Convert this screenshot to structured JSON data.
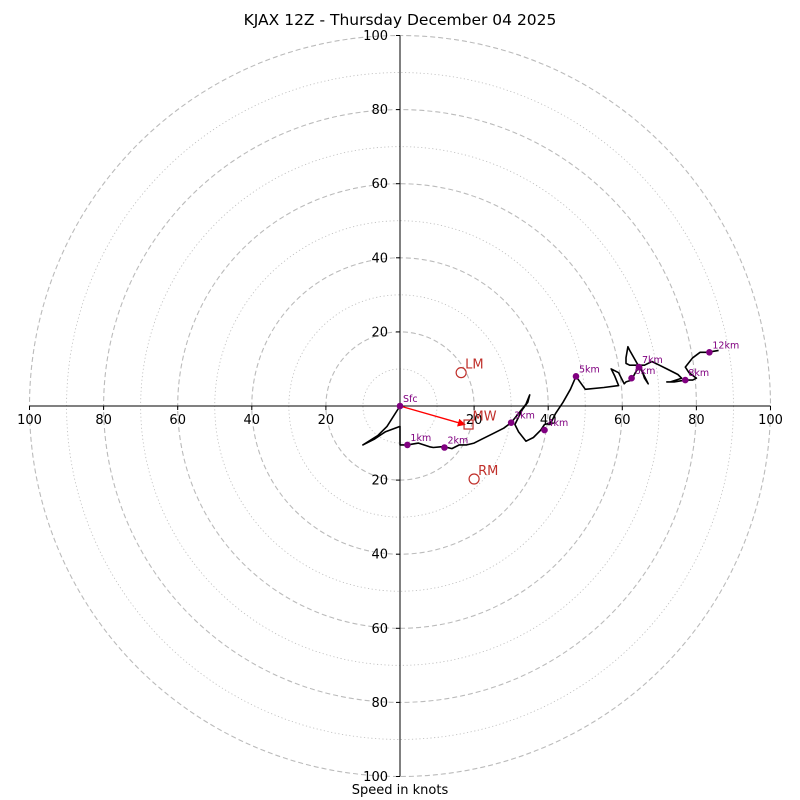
{
  "chart_data": {
    "type": "hodograph",
    "title": "KJAX 12Z - Thursday December 04 2025",
    "xlabel": "Speed in knots",
    "range": [
      -100,
      100
    ],
    "x_ticks": [
      "100",
      "80",
      "60",
      "40",
      "20",
      "20",
      "40",
      "60",
      "80",
      "100"
    ],
    "x_tick_values": [
      -100,
      -80,
      -60,
      -40,
      -20,
      20,
      40,
      60,
      80,
      100
    ],
    "y_ticks": [
      "100",
      "80",
      "60",
      "40",
      "20",
      "20",
      "40",
      "60",
      "80",
      "100"
    ],
    "y_tick_values": [
      100,
      80,
      60,
      40,
      20,
      -20,
      -40,
      -60,
      -80,
      -100
    ],
    "rings_dashed": [
      20,
      40,
      60,
      80,
      100
    ],
    "rings_dotted": [
      10,
      30,
      50,
      70,
      90
    ],
    "trace": [
      [
        0,
        0
      ],
      [
        -3.5,
        -5.5
      ],
      [
        -6,
        -8
      ],
      [
        -10,
        -10.5
      ],
      [
        -7,
        -9
      ],
      [
        -4,
        -7
      ],
      [
        0,
        -5.5
      ],
      [
        0,
        -9
      ],
      [
        0,
        -10.5
      ],
      [
        2,
        -10.5
      ],
      [
        5,
        -10
      ],
      [
        8,
        -11
      ],
      [
        9,
        -11.2
      ],
      [
        11,
        -11
      ],
      [
        12,
        -11
      ],
      [
        14,
        -11.5
      ],
      [
        16,
        -10.5
      ],
      [
        18,
        -10.5
      ],
      [
        20,
        -10
      ],
      [
        22,
        -9
      ],
      [
        25,
        -7.5
      ],
      [
        28,
        -6
      ],
      [
        30,
        -4.5
      ],
      [
        32,
        -2
      ],
      [
        34,
        0.5
      ],
      [
        35,
        3
      ],
      [
        34.5,
        1
      ],
      [
        33,
        -1
      ],
      [
        31,
        -5
      ],
      [
        32,
        -7
      ],
      [
        34,
        -9.5
      ],
      [
        36,
        -8.5
      ],
      [
        38,
        -6.5
      ],
      [
        39,
        -5
      ],
      [
        41,
        -4.5
      ],
      [
        40,
        -5
      ],
      [
        40.5,
        -5
      ],
      [
        42,
        -2
      ],
      [
        44,
        1
      ],
      [
        46,
        4.5
      ],
      [
        47.5,
        8
      ],
      [
        50,
        4.5
      ],
      [
        55,
        5
      ],
      [
        59,
        5.5
      ],
      [
        58,
        8
      ],
      [
        57,
        10
      ],
      [
        59,
        9
      ],
      [
        60.5,
        6
      ],
      [
        61,
        6.5
      ],
      [
        62.5,
        7
      ],
      [
        63,
        8
      ],
      [
        63.5,
        9
      ],
      [
        64.5,
        10.5
      ],
      [
        65,
        10.5
      ],
      [
        66,
        7.5
      ],
      [
        67,
        6
      ],
      [
        65.5,
        9
      ],
      [
        64,
        11.5
      ],
      [
        62,
        15
      ],
      [
        61.5,
        16
      ],
      [
        61,
        13
      ],
      [
        61,
        11.5
      ],
      [
        62,
        11
      ],
      [
        64,
        11
      ],
      [
        66,
        11
      ],
      [
        68,
        12
      ],
      [
        70,
        11
      ],
      [
        72,
        10
      ],
      [
        75,
        8.5
      ],
      [
        76,
        7.5
      ],
      [
        73,
        6.5
      ],
      [
        72,
        6.5
      ],
      [
        74,
        6.5
      ],
      [
        77,
        7
      ],
      [
        79,
        7
      ],
      [
        80,
        7.5
      ],
      [
        78,
        9
      ],
      [
        77,
        10.5
      ],
      [
        79,
        13
      ],
      [
        81,
        14.5
      ],
      [
        83,
        14.5
      ],
      [
        86,
        15
      ]
    ],
    "height_markers": [
      {
        "label": "Sfc",
        "u": 0,
        "v": 0
      },
      {
        "label": "1km",
        "u": 2,
        "v": -10.5
      },
      {
        "label": "2km",
        "u": 12,
        "v": -11.2
      },
      {
        "label": "3km",
        "u": 30,
        "v": -4.5
      },
      {
        "label": "4km",
        "u": 39,
        "v": -6.5
      },
      {
        "label": "5km",
        "u": 47.5,
        "v": 8
      },
      {
        "label": "6km",
        "u": 62.5,
        "v": 7.5
      },
      {
        "label": "7km",
        "u": 64.5,
        "v": 10.5
      },
      {
        "label": "8km",
        "u": 77,
        "v": 7
      },
      {
        "label": "12km",
        "u": 83.5,
        "v": 14.5
      }
    ],
    "storm_motion": {
      "arrow_from": [
        0,
        0
      ],
      "arrow_to": [
        17.5,
        -5
      ],
      "points": [
        {
          "label": "LM",
          "u": 16.5,
          "v": 9,
          "marker": "circle"
        },
        {
          "label": "RM",
          "u": 20,
          "v": -19.7,
          "marker": "circle"
        },
        {
          "label": "MW",
          "u": 18.5,
          "v": -5,
          "marker": "square"
        }
      ]
    },
    "colors": {
      "trace": "#000000",
      "marker": "#800080",
      "storm": "#c0302b",
      "arrow": "#ff0000",
      "grid": "#bbbbbb",
      "axis": "#000000"
    }
  }
}
